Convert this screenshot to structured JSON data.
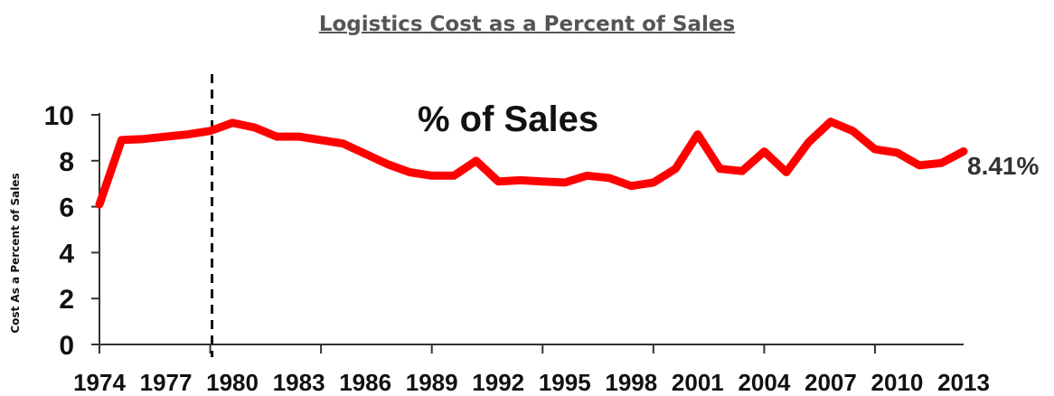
{
  "chart_data": {
    "type": "line",
    "title": "Logistics Cost as a Percent of Sales",
    "ylabel": "Cost As a Percent of Sales",
    "xlabel": "",
    "annotation": "% of Sales",
    "end_label": "8.41%",
    "marker_year": 1979,
    "ylim": [
      0,
      10
    ],
    "yticks": [
      "0",
      "2",
      "4",
      "6",
      "8",
      "10"
    ],
    "xticks": [
      "1974",
      "1977",
      "1980",
      "1983",
      "1986",
      "1989",
      "1992",
      "1995",
      "1998",
      "2001",
      "2004",
      "2007",
      "2010",
      "2013"
    ],
    "line_color": "#ff0000",
    "series": [
      {
        "x": [
          1974,
          1975,
          1976,
          1977,
          1978,
          1979,
          1980,
          1981,
          1982,
          1983,
          1984,
          1985,
          1986,
          1987,
          1988,
          1989,
          1990,
          1991,
          1992,
          1993,
          1994,
          1995,
          1996,
          1997,
          1998,
          1999,
          2000,
          2001,
          2002,
          2003,
          2004,
          2005,
          2006,
          2007,
          2008,
          2009,
          2010,
          2011,
          2012,
          2013
        ],
        "values": [
          6.1,
          8.9,
          8.95,
          9.05,
          9.15,
          9.3,
          9.65,
          9.45,
          9.05,
          9.05,
          8.9,
          8.75,
          8.3,
          7.85,
          7.5,
          7.35,
          7.35,
          8.0,
          7.1,
          7.15,
          7.1,
          7.05,
          7.35,
          7.25,
          6.9,
          7.05,
          7.65,
          9.15,
          7.65,
          7.55,
          8.4,
          7.5,
          8.8,
          9.7,
          9.3,
          8.5,
          8.35,
          7.8,
          7.9,
          8.41
        ]
      }
    ]
  }
}
